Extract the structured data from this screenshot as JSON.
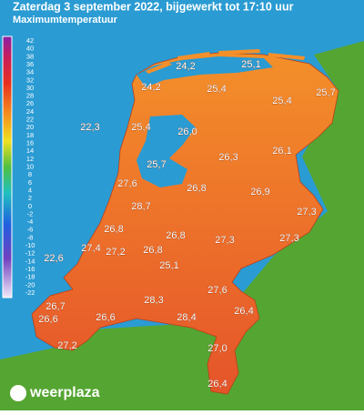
{
  "header": {
    "title": "Zaterdag 3 september 2022, bijgewerkt tot 17:10 uur",
    "subtitle": "Maximumtemperatuur"
  },
  "legend": {
    "ticks": [
      42,
      40,
      38,
      36,
      34,
      32,
      30,
      28,
      26,
      24,
      22,
      20,
      18,
      16,
      14,
      12,
      10,
      8,
      6,
      4,
      2,
      0,
      -2,
      -4,
      -6,
      -8,
      -10,
      -12,
      -14,
      -16,
      -18,
      -20,
      -22
    ]
  },
  "stations": [
    "24,2",
    "25,1",
    "24,2",
    "25,4",
    "25,7",
    "25,4",
    "22,3",
    "25,4",
    "26,0",
    "26,1",
    "26,3",
    "25,7",
    "27,6",
    "26,8",
    "26,9",
    "28,7",
    "27,3",
    "26,8",
    "26,8",
    "27,3",
    "27,3",
    "27,4",
    "27,2",
    "26,8",
    "22,6",
    "25,1",
    "27,6",
    "26,7",
    "28,3",
    "26,4",
    "26,6",
    "26,6",
    "28,4",
    "27,2",
    "27,0",
    "26,4"
  ],
  "brand": "weerplaza"
}
